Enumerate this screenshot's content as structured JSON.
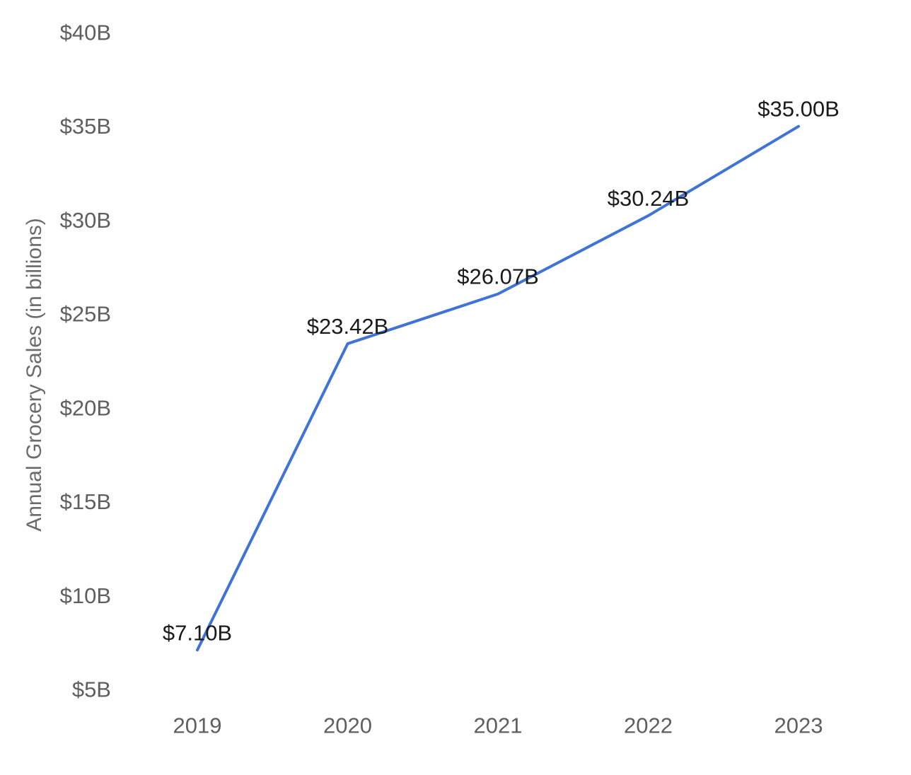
{
  "chart_data": {
    "type": "line",
    "title": "",
    "xlabel": "",
    "ylabel": "Annual Grocery Sales (in billions)",
    "categories": [
      "2019",
      "2020",
      "2021",
      "2022",
      "2023"
    ],
    "series": [
      {
        "values": [
          7.1,
          23.42,
          26.07,
          30.24,
          35.0
        ],
        "data_labels": [
          "$7.10B",
          "$23.42B",
          "$26.07B",
          "$30.24B",
          "$35.00B"
        ],
        "color": "#3f74d6"
      }
    ],
    "ylim": [
      5,
      40
    ],
    "yticks": [
      5,
      10,
      15,
      20,
      25,
      30,
      35,
      40
    ],
    "ytick_labels": [
      "$5B",
      "$10B",
      "$15B",
      "$20B",
      "$25B",
      "$30B",
      "$35B",
      "$40B"
    ],
    "grid": false,
    "legend": "none"
  }
}
